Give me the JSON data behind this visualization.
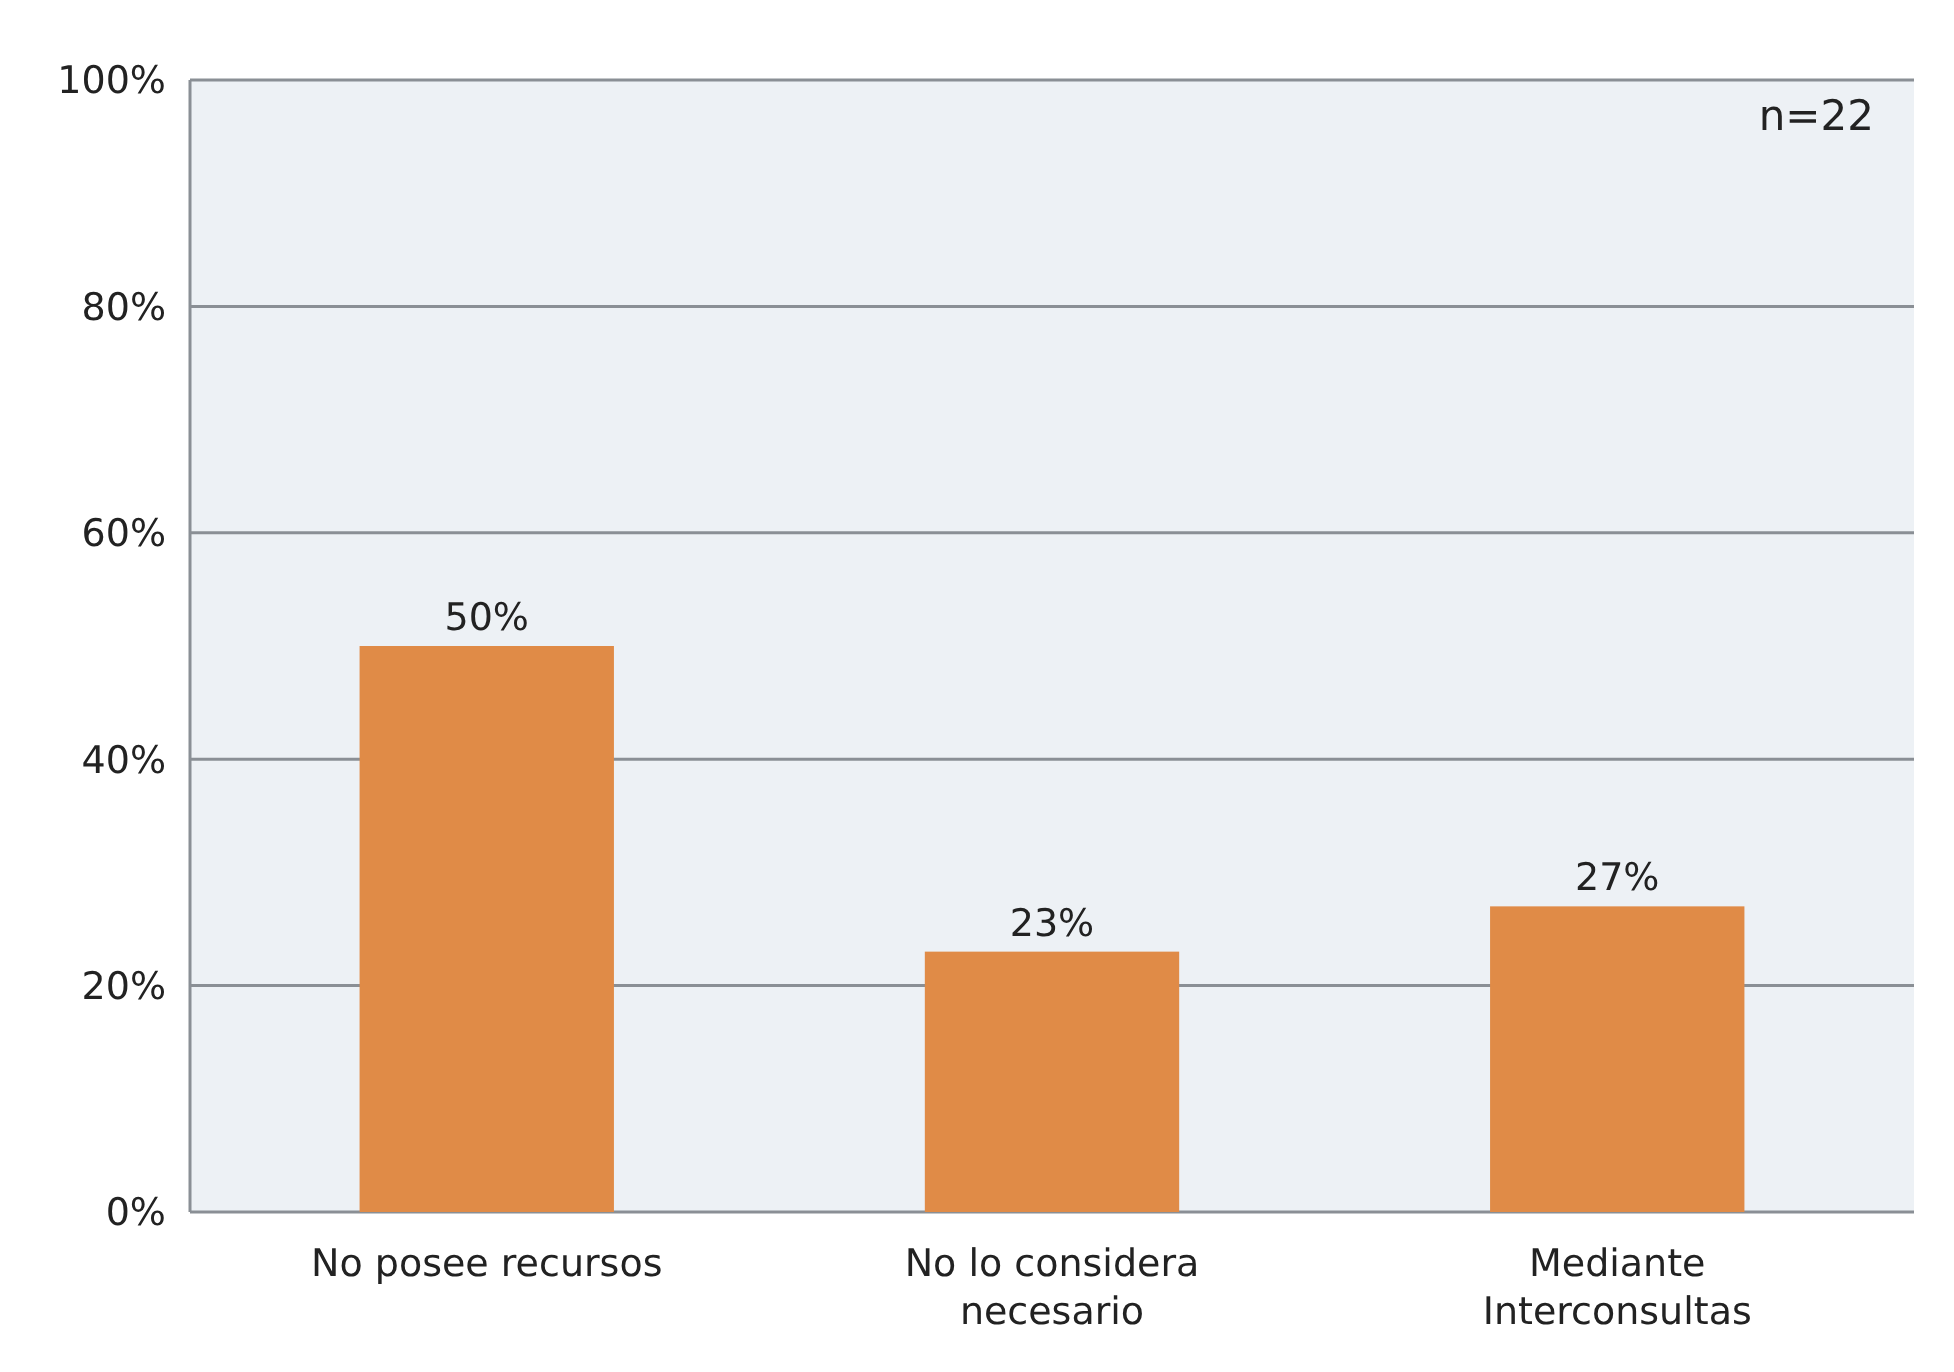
{
  "chart_data": {
    "type": "bar",
    "categories": [
      "No posee recursos",
      "No lo considera necesario",
      "Mediante Interconsultas"
    ],
    "values": [
      50,
      23,
      27
    ],
    "color": "#e08b47",
    "value_labels": [
      "50%",
      "23%",
      "27%"
    ],
    "ylim": [
      0,
      100
    ],
    "yticks": [
      {
        "value": 0,
        "label": "0%"
      },
      {
        "value": 20,
        "label": "20%"
      },
      {
        "value": 40,
        "label": "40%"
      },
      {
        "value": 60,
        "label": "60%"
      },
      {
        "value": 80,
        "label": "80%"
      },
      {
        "value": 100,
        "label": "100%"
      }
    ],
    "grid": "y",
    "annotations": [
      "n=22"
    ]
  }
}
